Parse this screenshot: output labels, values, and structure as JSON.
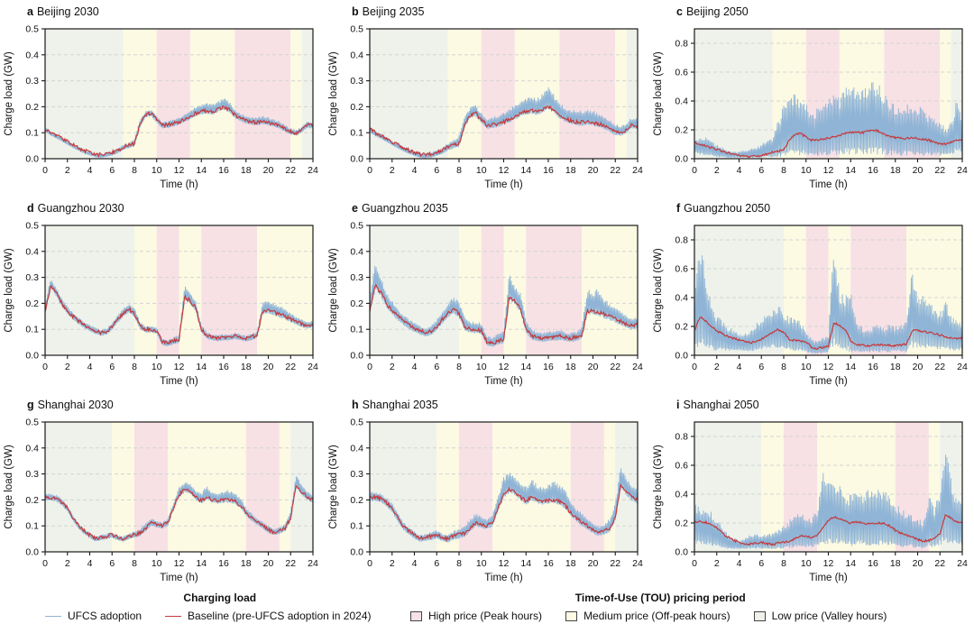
{
  "legend": {
    "charging": {
      "heading": "Charging load",
      "items": [
        {
          "name": "ufcs",
          "label": "UFCS adoption",
          "color": "#8fb4d6"
        },
        {
          "name": "baseline",
          "label": "Baseline (pre-UFCS adoption in 2024)",
          "color": "#c5393b"
        }
      ]
    },
    "tou": {
      "heading": "Time-of-Use (TOU) pricing period",
      "items": [
        {
          "name": "high",
          "label": "High price (Peak hours)",
          "color": "#f7e1e4"
        },
        {
          "name": "medium",
          "label": "Medium price (Off-peak hours)",
          "color": "#fcfae2"
        },
        {
          "name": "low",
          "label": "Low price (Valley hours)",
          "color": "#eef2ea"
        }
      ]
    }
  },
  "chart_data": {
    "type": "line",
    "x_step": 0.5,
    "x_range": [
      0,
      24
    ],
    "xticks": [
      0,
      2,
      4,
      6,
      8,
      10,
      12,
      14,
      16,
      18,
      20,
      22,
      24
    ],
    "xlabel": "Time (h)",
    "ylabel": "Charge load (GW)",
    "grid": "dashed-horizontal",
    "band_colors": {
      "high": "#f7e1e4",
      "medium": "#fcfae2",
      "low": "#eef2ea"
    },
    "series_colors": {
      "ufcs": "#8fb4d6",
      "baseline": "#c5393b"
    },
    "city_bands": {
      "Beijing": [
        [
          0,
          7,
          "low"
        ],
        [
          7,
          10,
          "medium"
        ],
        [
          10,
          13,
          "high"
        ],
        [
          13,
          17,
          "medium"
        ],
        [
          17,
          22,
          "high"
        ],
        [
          22,
          23,
          "medium"
        ],
        [
          23,
          24,
          "low"
        ]
      ],
      "Guangzhou": [
        [
          0,
          8,
          "low"
        ],
        [
          8,
          10,
          "medium"
        ],
        [
          10,
          12,
          "high"
        ],
        [
          12,
          14,
          "medium"
        ],
        [
          14,
          19,
          "high"
        ],
        [
          19,
          24,
          "medium"
        ]
      ],
      "Shanghai": [
        [
          0,
          6,
          "low"
        ],
        [
          6,
          8,
          "medium"
        ],
        [
          8,
          11,
          "high"
        ],
        [
          11,
          18,
          "medium"
        ],
        [
          18,
          21,
          "high"
        ],
        [
          21,
          22,
          "medium"
        ],
        [
          22,
          24,
          "low"
        ]
      ]
    },
    "city_baseline": {
      "Beijing": [
        0.115,
        0.1,
        0.09,
        0.078,
        0.065,
        0.053,
        0.042,
        0.032,
        0.024,
        0.017,
        0.015,
        0.018,
        0.024,
        0.032,
        0.045,
        0.052,
        0.058,
        0.13,
        0.17,
        0.175,
        0.15,
        0.128,
        0.13,
        0.135,
        0.142,
        0.152,
        0.163,
        0.175,
        0.182,
        0.185,
        0.18,
        0.19,
        0.2,
        0.19,
        0.168,
        0.155,
        0.146,
        0.141,
        0.14,
        0.144,
        0.14,
        0.134,
        0.128,
        0.115,
        0.104,
        0.1,
        0.112,
        0.13,
        0.127
      ],
      "Guangzhou": [
        0.17,
        0.27,
        0.24,
        0.2,
        0.17,
        0.15,
        0.132,
        0.117,
        0.105,
        0.095,
        0.087,
        0.092,
        0.11,
        0.138,
        0.16,
        0.178,
        0.16,
        0.112,
        0.1,
        0.1,
        0.095,
        0.052,
        0.046,
        0.055,
        0.06,
        0.225,
        0.21,
        0.18,
        0.1,
        0.076,
        0.07,
        0.066,
        0.07,
        0.07,
        0.074,
        0.07,
        0.066,
        0.07,
        0.078,
        0.17,
        0.172,
        0.166,
        0.158,
        0.15,
        0.14,
        0.13,
        0.12,
        0.115,
        0.12
      ],
      "Shanghai": [
        0.21,
        0.21,
        0.205,
        0.19,
        0.168,
        0.13,
        0.1,
        0.08,
        0.065,
        0.052,
        0.056,
        0.06,
        0.066,
        0.056,
        0.05,
        0.06,
        0.066,
        0.072,
        0.09,
        0.112,
        0.105,
        0.1,
        0.112,
        0.17,
        0.22,
        0.24,
        0.235,
        0.21,
        0.196,
        0.21,
        0.2,
        0.196,
        0.2,
        0.2,
        0.195,
        0.18,
        0.15,
        0.13,
        0.115,
        0.1,
        0.085,
        0.075,
        0.08,
        0.09,
        0.13,
        0.26,
        0.23,
        0.21,
        0.2
      ]
    },
    "panels": [
      {
        "label": "a",
        "title": "Beijing 2030",
        "city": "Beijing",
        "ymax": 0.5,
        "yticks": [
          0,
          0.1,
          0.2,
          0.3,
          0.4,
          0.5
        ],
        "upper": [
          0.122,
          0.106,
          0.096,
          0.083,
          0.069,
          0.057,
          0.046,
          0.036,
          0.028,
          0.021,
          0.019,
          0.023,
          0.03,
          0.04,
          0.054,
          0.062,
          0.078,
          0.152,
          0.186,
          0.19,
          0.166,
          0.142,
          0.146,
          0.152,
          0.16,
          0.172,
          0.186,
          0.2,
          0.21,
          0.216,
          0.21,
          0.222,
          0.236,
          0.22,
          0.19,
          0.176,
          0.166,
          0.16,
          0.16,
          0.166,
          0.16,
          0.152,
          0.145,
          0.13,
          0.118,
          0.112,
          0.126,
          0.146,
          0.14
        ],
        "lower_offset": 0.012
      },
      {
        "label": "b",
        "title": "Beijing 2035",
        "city": "Beijing",
        "ymax": 0.5,
        "yticks": [
          0,
          0.1,
          0.2,
          0.3,
          0.4,
          0.5
        ],
        "upper": [
          0.124,
          0.108,
          0.098,
          0.085,
          0.071,
          0.059,
          0.048,
          0.038,
          0.03,
          0.023,
          0.021,
          0.026,
          0.033,
          0.044,
          0.06,
          0.072,
          0.092,
          0.162,
          0.2,
          0.206,
          0.176,
          0.156,
          0.162,
          0.17,
          0.18,
          0.192,
          0.21,
          0.226,
          0.236,
          0.24,
          0.236,
          0.25,
          0.285,
          0.246,
          0.216,
          0.2,
          0.19,
          0.186,
          0.186,
          0.19,
          0.186,
          0.176,
          0.166,
          0.15,
          0.136,
          0.126,
          0.14,
          0.16,
          0.156
        ],
        "lower_offset": 0.014
      },
      {
        "label": "c",
        "title": "Beijing 2050",
        "city": "Beijing",
        "ymax": 0.9,
        "yticks": [
          0,
          0.2,
          0.4,
          0.6,
          0.8
        ],
        "upper": [
          0.14,
          0.15,
          0.15,
          0.12,
          0.1,
          0.08,
          0.06,
          0.05,
          0.05,
          0.06,
          0.07,
          0.08,
          0.1,
          0.13,
          0.15,
          0.27,
          0.37,
          0.43,
          0.45,
          0.41,
          0.38,
          0.34,
          0.35,
          0.38,
          0.42,
          0.46,
          0.42,
          0.53,
          0.5,
          0.53,
          0.49,
          0.52,
          0.56,
          0.52,
          0.46,
          0.41,
          0.38,
          0.36,
          0.39,
          0.36,
          0.38,
          0.34,
          0.3,
          0.28,
          0.25,
          0.22,
          0.26,
          0.41,
          0.26
        ],
        "lower": [
          0.04,
          0.03,
          0.02,
          0.02,
          0.01,
          0.01,
          0.005,
          0.005,
          0.005,
          0.005,
          0.005,
          0.005,
          0.005,
          0.01,
          0.01,
          0.01,
          0.01,
          0.02,
          0.02,
          0.02,
          0.02,
          0.02,
          0.02,
          0.02,
          0.02,
          0.02,
          0.02,
          0.03,
          0.03,
          0.03,
          0.03,
          0.03,
          0.03,
          0.03,
          0.03,
          0.02,
          0.02,
          0.02,
          0.02,
          0.02,
          0.02,
          0.02,
          0.02,
          0.02,
          0.02,
          0.02,
          0.03,
          0.04,
          0.04
        ]
      },
      {
        "label": "d",
        "title": "Guangzhou 2030",
        "city": "Guangzhou",
        "ymax": 0.5,
        "yticks": [
          0,
          0.1,
          0.2,
          0.3,
          0.4,
          0.5
        ],
        "upper": [
          0.2,
          0.3,
          0.26,
          0.22,
          0.19,
          0.165,
          0.147,
          0.13,
          0.118,
          0.107,
          0.098,
          0.105,
          0.125,
          0.155,
          0.18,
          0.2,
          0.185,
          0.13,
          0.115,
          0.115,
          0.11,
          0.065,
          0.06,
          0.07,
          0.08,
          0.27,
          0.24,
          0.21,
          0.12,
          0.09,
          0.082,
          0.078,
          0.082,
          0.082,
          0.087,
          0.082,
          0.078,
          0.082,
          0.095,
          0.21,
          0.21,
          0.2,
          0.19,
          0.18,
          0.165,
          0.15,
          0.14,
          0.13,
          0.135
        ],
        "lower_offset": 0.013
      },
      {
        "label": "e",
        "title": "Guangzhou 2035",
        "city": "Guangzhou",
        "ymax": 0.5,
        "yticks": [
          0,
          0.1,
          0.2,
          0.3,
          0.4,
          0.5
        ],
        "upper": [
          0.22,
          0.36,
          0.3,
          0.24,
          0.21,
          0.18,
          0.16,
          0.14,
          0.128,
          0.115,
          0.105,
          0.115,
          0.14,
          0.17,
          0.2,
          0.225,
          0.21,
          0.15,
          0.13,
          0.13,
          0.125,
          0.075,
          0.07,
          0.085,
          0.095,
          0.32,
          0.27,
          0.24,
          0.14,
          0.1,
          0.092,
          0.088,
          0.092,
          0.095,
          0.1,
          0.092,
          0.088,
          0.092,
          0.11,
          0.26,
          0.245,
          0.26,
          0.22,
          0.2,
          0.185,
          0.17,
          0.155,
          0.14,
          0.15
        ],
        "lower_offset": 0.016
      },
      {
        "label": "f",
        "title": "Guangzhou 2050",
        "city": "Guangzhou",
        "ymax": 0.9,
        "yticks": [
          0,
          0.2,
          0.4,
          0.6,
          0.8
        ],
        "upper": [
          0.45,
          0.81,
          0.58,
          0.35,
          0.28,
          0.25,
          0.2,
          0.18,
          0.16,
          0.15,
          0.17,
          0.22,
          0.27,
          0.29,
          0.32,
          0.35,
          0.3,
          0.27,
          0.25,
          0.24,
          0.16,
          0.12,
          0.1,
          0.12,
          0.14,
          0.8,
          0.45,
          0.42,
          0.46,
          0.22,
          0.2,
          0.18,
          0.2,
          0.22,
          0.2,
          0.22,
          0.2,
          0.22,
          0.25,
          0.61,
          0.42,
          0.45,
          0.38,
          0.33,
          0.3,
          0.38,
          0.28,
          0.25,
          0.22
        ],
        "lower": [
          0.05,
          0.06,
          0.05,
          0.04,
          0.03,
          0.03,
          0.03,
          0.03,
          0.03,
          0.03,
          0.03,
          0.03,
          0.04,
          0.04,
          0.05,
          0.05,
          0.04,
          0.03,
          0.03,
          0.03,
          0.02,
          0.01,
          0.01,
          0.01,
          0.02,
          0.05,
          0.04,
          0.04,
          0.02,
          0.02,
          0.02,
          0.02,
          0.02,
          0.02,
          0.02,
          0.02,
          0.02,
          0.02,
          0.02,
          0.05,
          0.05,
          0.05,
          0.04,
          0.04,
          0.04,
          0.04,
          0.03,
          0.03,
          0.03
        ]
      },
      {
        "label": "g",
        "title": "Shanghai 2030",
        "city": "Shanghai",
        "ymax": 0.5,
        "yticks": [
          0,
          0.1,
          0.2,
          0.3,
          0.4,
          0.5
        ],
        "upper": [
          0.225,
          0.225,
          0.22,
          0.205,
          0.18,
          0.14,
          0.11,
          0.09,
          0.075,
          0.06,
          0.065,
          0.07,
          0.078,
          0.066,
          0.06,
          0.072,
          0.08,
          0.088,
          0.11,
          0.13,
          0.12,
          0.115,
          0.13,
          0.19,
          0.25,
          0.27,
          0.265,
          0.24,
          0.225,
          0.26,
          0.23,
          0.225,
          0.235,
          0.24,
          0.23,
          0.21,
          0.17,
          0.15,
          0.13,
          0.115,
          0.1,
          0.09,
          0.095,
          0.11,
          0.16,
          0.3,
          0.26,
          0.235,
          0.22
        ],
        "lower_offset": 0.012
      },
      {
        "label": "h",
        "title": "Shanghai 2035",
        "city": "Shanghai",
        "ymax": 0.5,
        "yticks": [
          0,
          0.1,
          0.2,
          0.3,
          0.4,
          0.5
        ],
        "upper": [
          0.235,
          0.23,
          0.225,
          0.21,
          0.19,
          0.15,
          0.115,
          0.095,
          0.08,
          0.065,
          0.07,
          0.078,
          0.085,
          0.072,
          0.068,
          0.08,
          0.09,
          0.1,
          0.13,
          0.15,
          0.135,
          0.13,
          0.15,
          0.22,
          0.29,
          0.31,
          0.29,
          0.27,
          0.25,
          0.285,
          0.26,
          0.25,
          0.26,
          0.275,
          0.26,
          0.24,
          0.2,
          0.17,
          0.15,
          0.13,
          0.11,
          0.1,
          0.105,
          0.13,
          0.19,
          0.34,
          0.28,
          0.26,
          0.24
        ],
        "lower_offset": 0.015
      },
      {
        "label": "i",
        "title": "Shanghai 2050",
        "city": "Shanghai",
        "ymax": 0.9,
        "yticks": [
          0,
          0.2,
          0.4,
          0.6,
          0.8
        ],
        "upper": [
          0.33,
          0.32,
          0.3,
          0.28,
          0.22,
          0.18,
          0.12,
          0.1,
          0.08,
          0.1,
          0.12,
          0.13,
          0.12,
          0.12,
          0.14,
          0.16,
          0.18,
          0.22,
          0.26,
          0.28,
          0.24,
          0.24,
          0.3,
          0.56,
          0.5,
          0.5,
          0.46,
          0.4,
          0.4,
          0.46,
          0.42,
          0.44,
          0.46,
          0.44,
          0.42,
          0.4,
          0.34,
          0.3,
          0.28,
          0.26,
          0.24,
          0.22,
          0.4,
          0.3,
          0.45,
          0.79,
          0.5,
          0.38,
          0.34
        ],
        "lower": [
          0.06,
          0.05,
          0.05,
          0.04,
          0.04,
          0.03,
          0.02,
          0.02,
          0.02,
          0.02,
          0.02,
          0.02,
          0.02,
          0.02,
          0.02,
          0.02,
          0.02,
          0.02,
          0.03,
          0.03,
          0.03,
          0.03,
          0.03,
          0.04,
          0.05,
          0.05,
          0.05,
          0.04,
          0.04,
          0.04,
          0.04,
          0.04,
          0.04,
          0.04,
          0.04,
          0.04,
          0.03,
          0.03,
          0.03,
          0.03,
          0.02,
          0.02,
          0.03,
          0.03,
          0.04,
          0.06,
          0.05,
          0.05,
          0.05
        ]
      }
    ]
  }
}
